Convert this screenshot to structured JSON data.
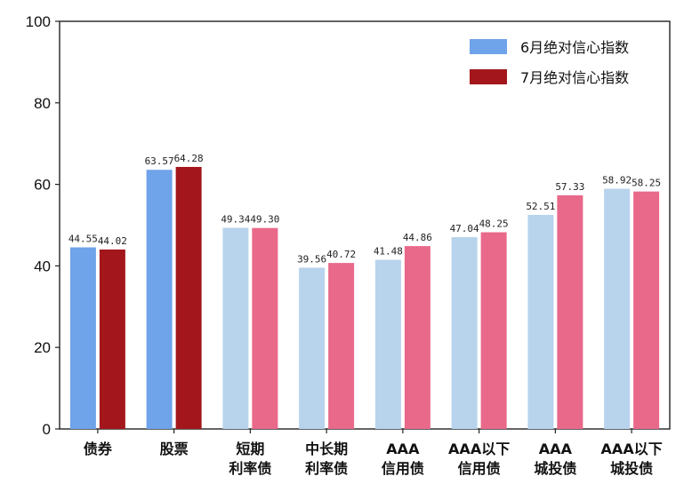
{
  "chart_data": {
    "type": "bar",
    "categories": [
      [
        "债券"
      ],
      [
        "股票"
      ],
      [
        "短期",
        "利率债"
      ],
      [
        "中长期",
        "利率债"
      ],
      [
        "AAA",
        "信用债"
      ],
      [
        "AAA以下",
        "信用债"
      ],
      [
        "AAA",
        "城投债"
      ],
      [
        "AAA以下",
        "城投债"
      ]
    ],
    "series": [
      {
        "name": "6月绝对信心指数",
        "values": [
          44.55,
          63.57,
          49.34,
          39.56,
          41.48,
          47.04,
          52.51,
          58.92
        ]
      },
      {
        "name": "7月绝对信心指数",
        "values": [
          44.02,
          64.28,
          49.3,
          40.72,
          44.86,
          48.25,
          57.33,
          58.25
        ]
      }
    ],
    "data_labels": [
      [
        "44.55",
        "63.57",
        "49.34",
        "39.56",
        "41.48",
        "47.04",
        "52.51",
        "58.92"
      ],
      [
        "44.02",
        "64.28",
        "49.30",
        "40.72",
        "44.86",
        "48.25",
        "57.33",
        "58.25"
      ]
    ],
    "ylim": [
      0,
      100
    ],
    "yticks": [
      "0",
      "20",
      "40",
      "60",
      "80",
      "100"
    ],
    "legend_position": "top-right",
    "grid": false,
    "colors": {
      "series1_group1": "#6fa3ea",
      "series2_group1": "#a3171c",
      "series1_group2": "#b8d3ec",
      "series2_group2": "#e9698b"
    }
  }
}
